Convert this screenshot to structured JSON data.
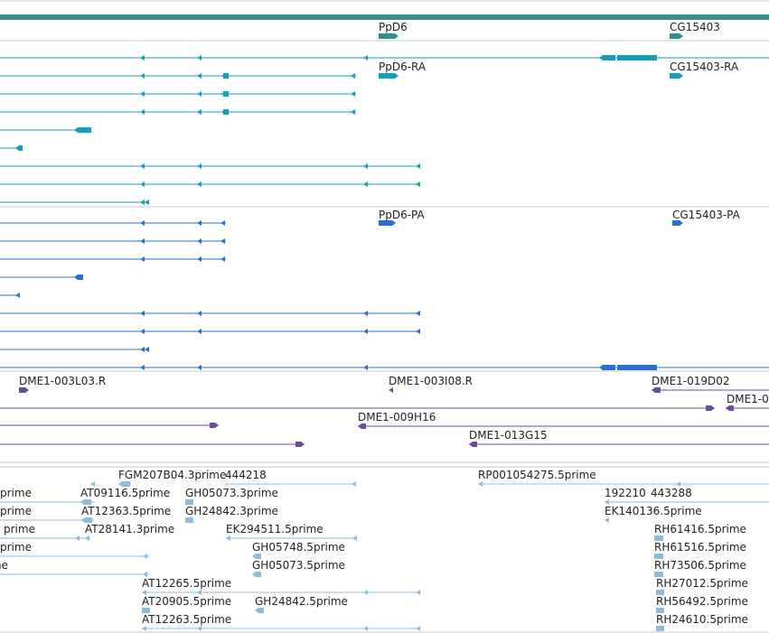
{
  "colors": {
    "gene": "#2f8f8f",
    "transcript": "#12a0bf",
    "protein": "#2a6fd1",
    "clone": "#6a4c9c",
    "est": "#8fbcd9",
    "separator": "#c8c8c8",
    "header_bar": "#3a8f8f"
  },
  "tracks": {
    "genes": {
      "labels": [
        "PpD6",
        "CG15403"
      ]
    },
    "transcripts": {
      "labels": [
        "PpD6-RA",
        "CG15403-RA"
      ]
    },
    "proteins": {
      "labels": [
        "PpD6-PA",
        "CG15403-PA"
      ]
    },
    "clones": {
      "labels": [
        "DME1-003L03.R",
        "DME1-003I08.R",
        "DME1-019D02",
        "DME1-0",
        "DME1-009H16",
        "DME1-013G15"
      ]
    },
    "ests": {
      "labels": [
        "FGM207B04.3prime",
        "444218",
        "RP001054275.5prime",
        "prime",
        "AT09116.5prime",
        "GH05073.3prime",
        "192210",
        "443288",
        "prime",
        "AT12363.5prime",
        "GH24842.3prime",
        "EK140136.5prime",
        "prime",
        "AT28141.3prime",
        "EK294511.5prime",
        "RH61416.5prime",
        "prime",
        "GH05748.5prime",
        "RH61516.5prime",
        "prime",
        "GH05073.5prime",
        "RH73506.5prime",
        "AT12265.5prime",
        "RH27012.5prime",
        "AT20905.5prime",
        "GH24842.5prime",
        "RH56492.5prime",
        "AT12263.5prime",
        "RH24610.5prime"
      ]
    }
  }
}
